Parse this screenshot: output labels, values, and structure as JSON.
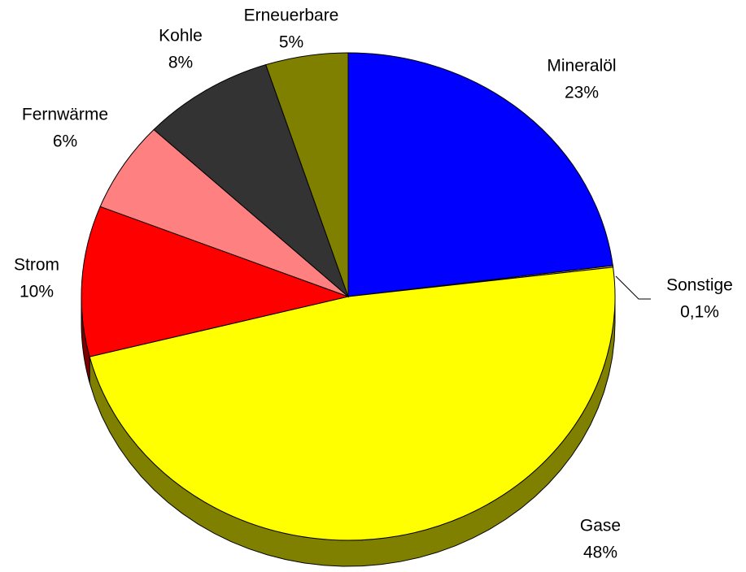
{
  "chart_data": {
    "type": "pie",
    "categories": [
      "Mineralöl",
      "Sonstige",
      "Gase",
      "Strom",
      "Fernwärme",
      "Kohle",
      "Erneuerbare"
    ],
    "values": [
      23,
      0.1,
      48,
      10,
      6,
      8,
      5
    ],
    "value_labels": [
      "23%",
      "0,1%",
      "48%",
      "10%",
      "6%",
      "8%",
      "5%"
    ],
    "colors": [
      "#0000ff",
      "#ffcc00",
      "#ffff00",
      "#ff0000",
      "#ff8080",
      "#333333",
      "#808000"
    ]
  }
}
